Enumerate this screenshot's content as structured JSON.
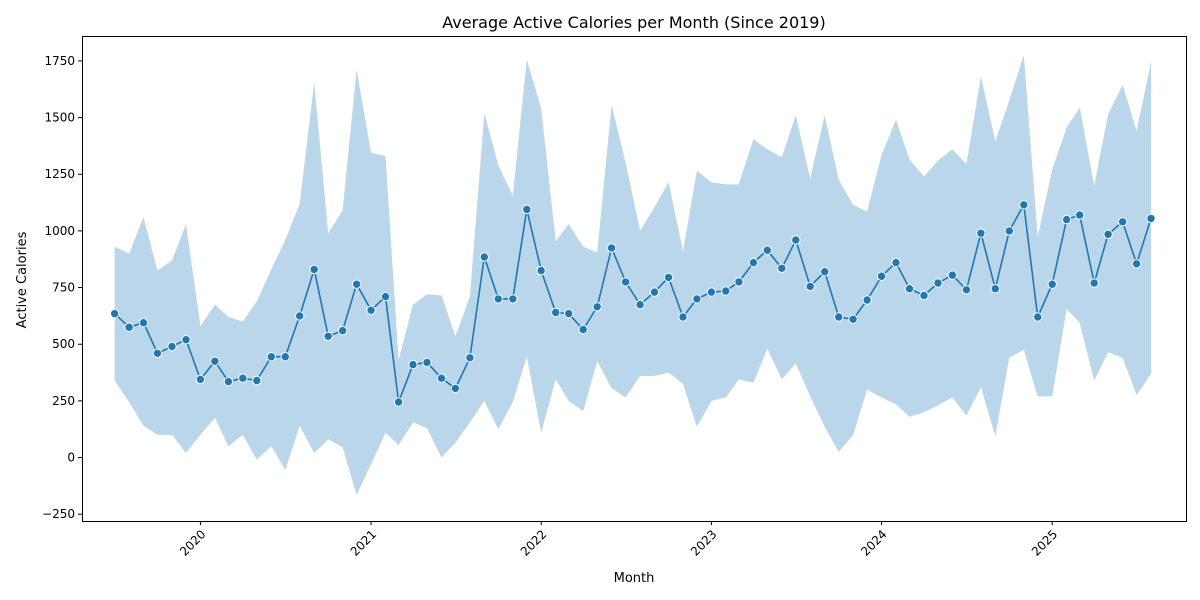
{
  "chart_data": {
    "type": "line",
    "title": "Average Active Calories per Month (Since 2019)",
    "xlabel": "Month",
    "ylabel": "Active Calories",
    "x_ticks": [
      "2020",
      "2021",
      "2022",
      "2023",
      "2024",
      "2025"
    ],
    "y_ticks": [
      "−250",
      "0",
      "250",
      "500",
      "750",
      "1000",
      "1250",
      "1500",
      "1750"
    ],
    "ylim": [
      -280,
      1860
    ],
    "xlim": [
      "2019-04-22",
      "2025-10-15"
    ],
    "grid": false,
    "legend": "none",
    "colors": {
      "line": "#1f77b4",
      "band": "#bad6ea"
    },
    "series": [
      {
        "x": [
          "2019-07",
          "2019-08",
          "2019-09",
          "2019-10",
          "2019-11",
          "2019-12",
          "2020-01",
          "2020-02",
          "2020-03",
          "2020-04",
          "2020-05",
          "2020-06",
          "2020-07",
          "2020-08",
          "2020-09",
          "2020-10",
          "2020-11",
          "2020-12",
          "2021-01",
          "2021-02",
          "2021-03",
          "2021-04",
          "2021-05",
          "2021-06",
          "2021-07",
          "2021-08",
          "2021-09",
          "2021-10",
          "2021-11",
          "2021-12",
          "2022-01",
          "2022-02",
          "2022-03",
          "2022-04",
          "2022-05",
          "2022-06",
          "2022-07",
          "2022-08",
          "2022-09",
          "2022-10",
          "2022-11",
          "2022-12",
          "2023-01",
          "2023-02",
          "2023-03",
          "2023-04",
          "2023-05",
          "2023-06",
          "2023-07",
          "2023-08",
          "2023-09",
          "2023-10",
          "2023-11",
          "2023-12",
          "2024-01",
          "2024-02",
          "2024-03",
          "2024-04",
          "2024-05",
          "2024-06",
          "2024-07",
          "2024-08",
          "2024-09",
          "2024-10",
          "2024-11",
          "2024-12",
          "2025-01",
          "2025-02",
          "2025-03",
          "2025-04",
          "2025-05",
          "2025-06",
          "2025-07",
          "2025-08"
        ],
        "y": [
          635,
          575,
          595,
          460,
          490,
          520,
          345,
          425,
          335,
          350,
          340,
          445,
          445,
          625,
          830,
          535,
          560,
          765,
          650,
          710,
          245,
          410,
          420,
          350,
          305,
          440,
          885,
          700,
          700,
          1095,
          825,
          640,
          635,
          565,
          665,
          925,
          775,
          675,
          730,
          795,
          620,
          700,
          730,
          735,
          775,
          860,
          915,
          835,
          960,
          755,
          820,
          620,
          610,
          695,
          800,
          860,
          745,
          715,
          770,
          805,
          740,
          990,
          745,
          1000,
          1115,
          620,
          765,
          1050,
          1070,
          770,
          985,
          1040,
          855,
          1055
        ],
        "y_low": [
          340,
          245,
          140,
          100,
          100,
          20,
          100,
          175,
          50,
          100,
          -10,
          50,
          -55,
          140,
          20,
          80,
          45,
          -165,
          -30,
          110,
          55,
          155,
          130,
          0,
          65,
          155,
          250,
          125,
          245,
          445,
          110,
          345,
          250,
          205,
          425,
          305,
          265,
          360,
          360,
          375,
          325,
          135,
          250,
          265,
          345,
          330,
          480,
          345,
          415,
          270,
          135,
          25,
          100,
          300,
          265,
          235,
          180,
          200,
          230,
          265,
          185,
          310,
          95,
          440,
          475,
          270,
          270,
          655,
          595,
          340,
          465,
          440,
          275,
          370
        ],
        "y_high": [
          930,
          900,
          1060,
          825,
          870,
          1030,
          580,
          675,
          620,
          600,
          690,
          830,
          960,
          1120,
          1655,
          990,
          1090,
          1710,
          1345,
          1330,
          430,
          675,
          720,
          715,
          535,
          710,
          1520,
          1290,
          1155,
          1755,
          1540,
          955,
          1030,
          930,
          905,
          1555,
          1300,
          1000,
          1105,
          1215,
          910,
          1265,
          1215,
          1205,
          1205,
          1405,
          1360,
          1325,
          1510,
          1230,
          1510,
          1225,
          1115,
          1085,
          1335,
          1490,
          1315,
          1240,
          1310,
          1360,
          1295,
          1680,
          1395,
          1575,
          1775,
          975,
          1270,
          1455,
          1545,
          1200,
          1515,
          1645,
          1440,
          1745
        ]
      }
    ]
  }
}
